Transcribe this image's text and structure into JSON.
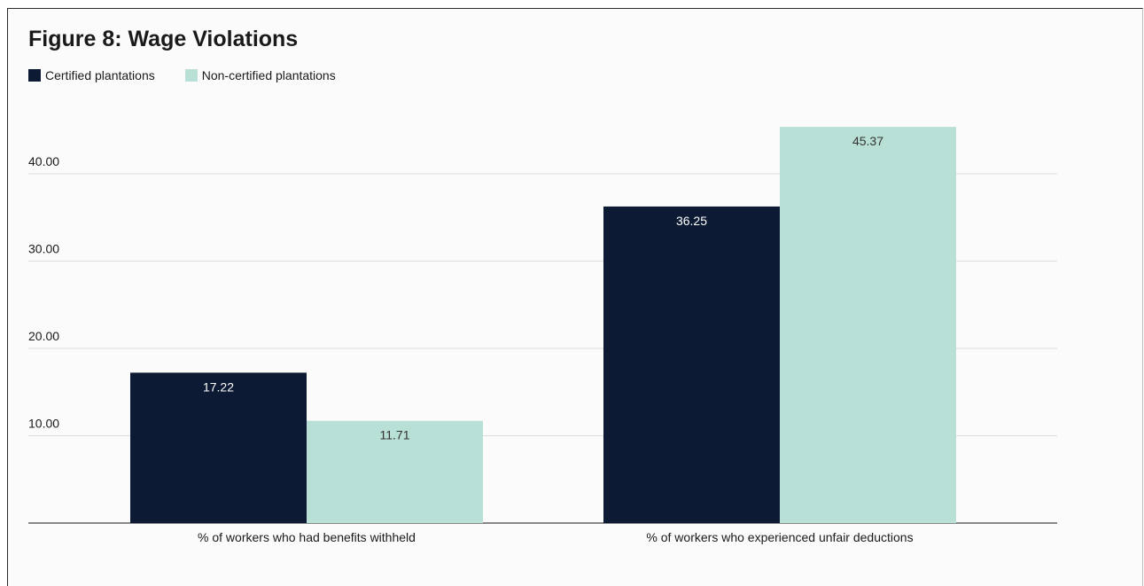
{
  "chart_data": {
    "type": "bar",
    "title": "Figure 8: Wage Violations",
    "categories": [
      "% of workers who had benefits withheld",
      "% of workers who experienced unfair deductions"
    ],
    "series": [
      {
        "name": "Certified plantations",
        "values": [
          17.22,
          36.25
        ],
        "color": "#0d1a33",
        "label_color": "#ffffff"
      },
      {
        "name": "Non-certified plantations",
        "values": [
          11.71,
          45.37
        ],
        "color": "#b9e0d6",
        "label_color": "#333333"
      }
    ],
    "value_labels": [
      [
        "17.22",
        "36.25"
      ],
      [
        "11.71",
        "45.37"
      ]
    ],
    "yticks": [
      10,
      20,
      30,
      40
    ],
    "ytick_labels": [
      "10.00",
      "20.00",
      "30.00",
      "40.00"
    ],
    "ylim": [
      0,
      48
    ],
    "grid": true,
    "legend_position": "top-left",
    "gridline_color": "#dcdcdc",
    "axis_color": "#444444"
  }
}
